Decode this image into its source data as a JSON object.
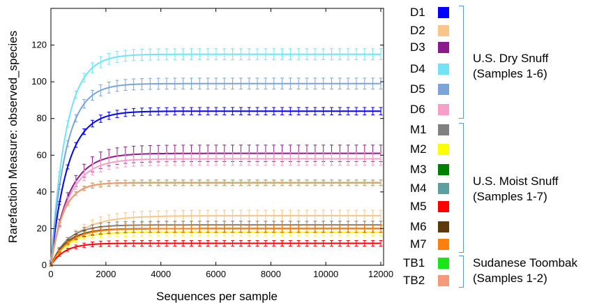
{
  "chart_data": {
    "type": "line",
    "xlabel": "Sequences per sample",
    "ylabel": "Rarefaction Measure: observed_species",
    "xlim": [
      0,
      12100
    ],
    "ylim": [
      0,
      140
    ],
    "x_ticks": [
      0,
      2000,
      4000,
      6000,
      8000,
      10000,
      12000
    ],
    "y_ticks": [
      0,
      20,
      40,
      60,
      80,
      100,
      120
    ],
    "x_tick_labels": [
      "0",
      "2000",
      "4000",
      "6000",
      "8000",
      "10000",
      "12000"
    ],
    "y_tick_labels": [
      "0",
      "20",
      "40",
      "60",
      "80",
      "100",
      "120"
    ],
    "error_bars": true,
    "grid": false,
    "series": [
      {
        "name": "D1",
        "color": "#0000ff",
        "plateau": 84,
        "rate": 600,
        "err": 2
      },
      {
        "name": "D2",
        "color": "#f9c689",
        "plateau": 27,
        "rate": 900,
        "err": 3
      },
      {
        "name": "D3",
        "color": "#8b1a8b",
        "plateau": 61,
        "rate": 650,
        "err": 4.5
      },
      {
        "name": "D4",
        "color": "#70e4f5",
        "plateau": 115,
        "rate": 550,
        "err": 3
      },
      {
        "name": "D5",
        "color": "#7ba4d8",
        "plateau": 99,
        "rate": 550,
        "err": 3
      },
      {
        "name": "D6",
        "color": "#f79fc8",
        "plateau": 58,
        "rate": 650,
        "err": 3.5
      },
      {
        "name": "M1",
        "color": "#808080",
        "plateau": 22,
        "rate": 600,
        "err": 2
      },
      {
        "name": "M2",
        "color": "#ffff00",
        "plateau": 18,
        "rate": 600,
        "err": 2
      },
      {
        "name": "M3",
        "color": "#008000",
        "plateau": 20,
        "rate": 600,
        "err": 2
      },
      {
        "name": "M4",
        "color": "#5f9ea0",
        "plateau": 45,
        "rate": 450,
        "err": 1.5
      },
      {
        "name": "M5",
        "color": "#ff0000",
        "plateau": 12,
        "rate": 500,
        "err": 1.5
      },
      {
        "name": "M6",
        "color": "#5c3a0e",
        "plateau": 20,
        "rate": 600,
        "err": 2
      },
      {
        "name": "M7",
        "color": "#ff7f0e",
        "plateau": 20,
        "rate": 650,
        "err": 2
      },
      {
        "name": "TB1",
        "color": "#19e619",
        "plateau": 45,
        "rate": 450,
        "err": 1.5
      },
      {
        "name": "TB2",
        "color": "#f49a7a",
        "plateau": 45,
        "rate": 450,
        "err": 1.5
      }
    ]
  },
  "legend": {
    "items": [
      {
        "label": "D1",
        "color": "#0000ff"
      },
      {
        "label": "D2",
        "color": "#f9c689"
      },
      {
        "label": "D3",
        "color": "#8b1a8b"
      },
      {
        "label": "D4",
        "color": "#70e4f5"
      },
      {
        "label": "D5",
        "color": "#7ba4d8"
      },
      {
        "label": "D6",
        "color": "#f79fc8"
      },
      {
        "label": "M1",
        "color": "#808080"
      },
      {
        "label": "M2",
        "color": "#ffff00"
      },
      {
        "label": "M3",
        "color": "#008000"
      },
      {
        "label": "M4",
        "color": "#5f9ea0"
      },
      {
        "label": "M5",
        "color": "#ff0000"
      },
      {
        "label": "M6",
        "color": "#5c3a0e"
      },
      {
        "label": "M7",
        "color": "#ff7f0e"
      },
      {
        "label": "TB1",
        "color": "#19e619"
      },
      {
        "label": "TB2",
        "color": "#f49a7a"
      }
    ],
    "groups": [
      {
        "line1": "U.S. Dry Snuff",
        "line2": "(Samples 1-6)"
      },
      {
        "line1": "U.S. Moist Snuff",
        "line2": "(Samples 1-7)"
      },
      {
        "line1": "Sudanese Toombak",
        "line2": "(Samples 1-2)"
      }
    ]
  }
}
